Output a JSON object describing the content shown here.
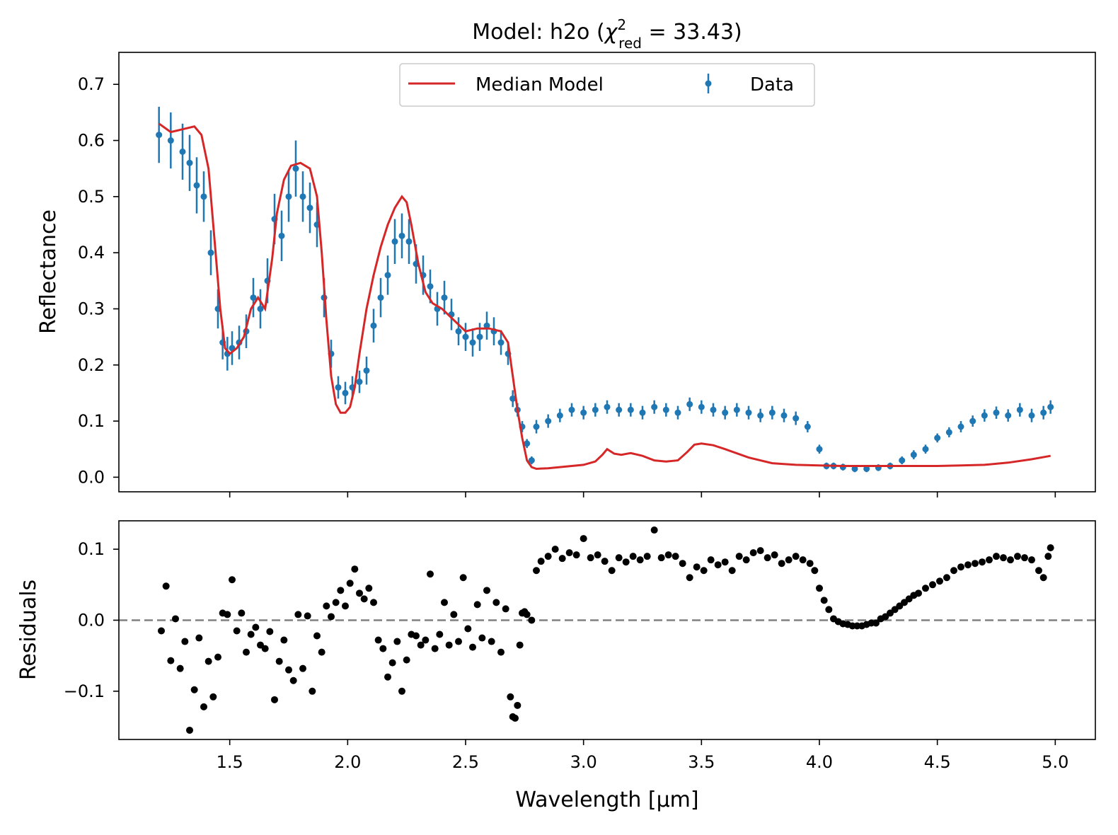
{
  "chart_data": {
    "type": "scatter",
    "title": {
      "prefix": "Model: h2o   (",
      "chi": "χ",
      "sup": "2",
      "sub": "red",
      "suffix": " = 33.43)"
    },
    "xlabel": "Wavelength [μm]",
    "xlim": [
      1.03,
      5.17
    ],
    "x_ticks": [
      1.5,
      2.0,
      2.5,
      3.0,
      3.5,
      4.0,
      4.5,
      5.0
    ],
    "x_tick_labels": [
      "1.5",
      "2.0",
      "2.5",
      "3.0",
      "3.5",
      "4.0",
      "4.5",
      "5.0"
    ],
    "legend": {
      "placement": "top-center",
      "model_label": "Median Model",
      "data_label": "Data"
    },
    "colors": {
      "model": "#d62728",
      "data": "#1f77b4",
      "residual": "#000000",
      "zero_line": "#808080"
    },
    "top_panel": {
      "ylabel": "Reflectance",
      "ylim": [
        -0.026,
        0.757
      ],
      "y_ticks": [
        0.0,
        0.1,
        0.2,
        0.3,
        0.4,
        0.5,
        0.6,
        0.7
      ],
      "y_tick_labels": [
        "0.0",
        "0.1",
        "0.2",
        "0.3",
        "0.4",
        "0.5",
        "0.6",
        "0.7"
      ],
      "model_curve": {
        "name": "Median Model",
        "x": [
          1.2,
          1.25,
          1.3,
          1.35,
          1.38,
          1.41,
          1.44,
          1.46,
          1.48,
          1.5,
          1.53,
          1.56,
          1.59,
          1.62,
          1.65,
          1.68,
          1.7,
          1.73,
          1.76,
          1.8,
          1.84,
          1.87,
          1.89,
          1.91,
          1.93,
          1.95,
          1.97,
          1.99,
          2.01,
          2.03,
          2.05,
          2.08,
          2.11,
          2.14,
          2.17,
          2.2,
          2.23,
          2.25,
          2.27,
          2.3,
          2.33,
          2.36,
          2.4,
          2.45,
          2.5,
          2.55,
          2.6,
          2.65,
          2.68,
          2.7,
          2.72,
          2.74,
          2.76,
          2.78,
          2.8,
          2.85,
          2.9,
          2.95,
          3.0,
          3.05,
          3.08,
          3.1,
          3.13,
          3.16,
          3.2,
          3.25,
          3.3,
          3.35,
          3.4,
          3.44,
          3.47,
          3.5,
          3.55,
          3.6,
          3.7,
          3.8,
          3.9,
          4.0,
          4.1,
          4.2,
          4.3,
          4.4,
          4.5,
          4.6,
          4.7,
          4.8,
          4.9,
          4.98
        ],
        "y": [
          0.63,
          0.615,
          0.62,
          0.625,
          0.61,
          0.55,
          0.4,
          0.3,
          0.23,
          0.22,
          0.23,
          0.25,
          0.3,
          0.32,
          0.3,
          0.39,
          0.47,
          0.53,
          0.555,
          0.56,
          0.55,
          0.5,
          0.4,
          0.28,
          0.18,
          0.13,
          0.115,
          0.115,
          0.125,
          0.16,
          0.22,
          0.3,
          0.36,
          0.41,
          0.45,
          0.48,
          0.5,
          0.49,
          0.45,
          0.38,
          0.33,
          0.31,
          0.3,
          0.28,
          0.26,
          0.265,
          0.265,
          0.26,
          0.24,
          0.18,
          0.12,
          0.07,
          0.03,
          0.018,
          0.015,
          0.016,
          0.018,
          0.02,
          0.022,
          0.028,
          0.04,
          0.05,
          0.042,
          0.04,
          0.043,
          0.038,
          0.03,
          0.028,
          0.03,
          0.045,
          0.058,
          0.06,
          0.057,
          0.05,
          0.035,
          0.025,
          0.022,
          0.021,
          0.02,
          0.02,
          0.02,
          0.02,
          0.02,
          0.021,
          0.022,
          0.026,
          0.032,
          0.038
        ]
      },
      "data_points": {
        "name": "Data",
        "x": [
          1.2,
          1.25,
          1.3,
          1.33,
          1.36,
          1.39,
          1.42,
          1.45,
          1.47,
          1.49,
          1.51,
          1.54,
          1.57,
          1.6,
          1.63,
          1.66,
          1.69,
          1.72,
          1.75,
          1.78,
          1.81,
          1.84,
          1.87,
          1.9,
          1.93,
          1.96,
          1.99,
          2.02,
          2.05,
          2.08,
          2.11,
          2.14,
          2.17,
          2.2,
          2.23,
          2.26,
          2.29,
          2.32,
          2.35,
          2.38,
          2.41,
          2.44,
          2.47,
          2.5,
          2.53,
          2.56,
          2.59,
          2.62,
          2.65,
          2.68,
          2.7,
          2.72,
          2.74,
          2.76,
          2.78,
          2.8,
          2.85,
          2.9,
          2.95,
          3.0,
          3.05,
          3.1,
          3.15,
          3.2,
          3.25,
          3.3,
          3.35,
          3.4,
          3.45,
          3.5,
          3.55,
          3.6,
          3.65,
          3.7,
          3.75,
          3.8,
          3.85,
          3.9,
          3.95,
          4.0,
          4.03,
          4.06,
          4.1,
          4.15,
          4.2,
          4.25,
          4.3,
          4.35,
          4.4,
          4.45,
          4.5,
          4.55,
          4.6,
          4.65,
          4.7,
          4.75,
          4.8,
          4.85,
          4.9,
          4.95,
          4.98
        ],
        "y": [
          0.61,
          0.6,
          0.58,
          0.56,
          0.52,
          0.5,
          0.4,
          0.3,
          0.24,
          0.22,
          0.23,
          0.24,
          0.26,
          0.32,
          0.3,
          0.35,
          0.46,
          0.43,
          0.5,
          0.55,
          0.5,
          0.48,
          0.45,
          0.32,
          0.22,
          0.16,
          0.15,
          0.16,
          0.17,
          0.19,
          0.27,
          0.32,
          0.36,
          0.42,
          0.43,
          0.42,
          0.38,
          0.36,
          0.34,
          0.3,
          0.32,
          0.29,
          0.26,
          0.25,
          0.24,
          0.25,
          0.27,
          0.26,
          0.24,
          0.22,
          0.14,
          0.12,
          0.09,
          0.06,
          0.03,
          0.09,
          0.1,
          0.11,
          0.12,
          0.115,
          0.12,
          0.125,
          0.12,
          0.12,
          0.115,
          0.125,
          0.12,
          0.115,
          0.13,
          0.125,
          0.12,
          0.115,
          0.12,
          0.115,
          0.11,
          0.115,
          0.11,
          0.105,
          0.09,
          0.05,
          0.02,
          0.02,
          0.018,
          0.015,
          0.015,
          0.017,
          0.02,
          0.03,
          0.04,
          0.05,
          0.07,
          0.08,
          0.09,
          0.1,
          0.11,
          0.115,
          0.11,
          0.12,
          0.11,
          0.115,
          0.125
        ],
        "error": [
          0.05,
          0.05,
          0.05,
          0.05,
          0.05,
          0.045,
          0.04,
          0.035,
          0.03,
          0.03,
          0.03,
          0.03,
          0.03,
          0.035,
          0.035,
          0.04,
          0.045,
          0.045,
          0.045,
          0.05,
          0.045,
          0.045,
          0.04,
          0.035,
          0.025,
          0.02,
          0.02,
          0.02,
          0.02,
          0.025,
          0.03,
          0.035,
          0.035,
          0.04,
          0.04,
          0.04,
          0.035,
          0.035,
          0.03,
          0.03,
          0.03,
          0.028,
          0.025,
          0.025,
          0.025,
          0.025,
          0.025,
          0.025,
          0.022,
          0.02,
          0.015,
          0.012,
          0.01,
          0.008,
          0.007,
          0.012,
          0.012,
          0.012,
          0.012,
          0.012,
          0.012,
          0.012,
          0.012,
          0.012,
          0.012,
          0.012,
          0.012,
          0.012,
          0.012,
          0.012,
          0.012,
          0.012,
          0.012,
          0.012,
          0.012,
          0.012,
          0.012,
          0.012,
          0.01,
          0.008,
          0.006,
          0.006,
          0.006,
          0.006,
          0.006,
          0.006,
          0.006,
          0.007,
          0.008,
          0.008,
          0.008,
          0.009,
          0.01,
          0.01,
          0.011,
          0.011,
          0.011,
          0.012,
          0.012,
          0.012,
          0.012
        ]
      }
    },
    "bottom_panel": {
      "ylabel": "Residuals",
      "ylim": [
        -0.168,
        0.14
      ],
      "y_ticks": [
        -0.1,
        0.0,
        0.1
      ],
      "y_tick_labels": [
        "−0.1",
        "0.0",
        "0.1"
      ],
      "zero_line": 0.0,
      "residuals": {
        "x": [
          1.21,
          1.23,
          1.25,
          1.27,
          1.29,
          1.31,
          1.33,
          1.35,
          1.37,
          1.39,
          1.41,
          1.43,
          1.45,
          1.47,
          1.49,
          1.51,
          1.53,
          1.55,
          1.57,
          1.59,
          1.61,
          1.63,
          1.65,
          1.67,
          1.69,
          1.71,
          1.73,
          1.75,
          1.77,
          1.79,
          1.81,
          1.83,
          1.85,
          1.87,
          1.89,
          1.91,
          1.93,
          1.95,
          1.97,
          1.99,
          2.01,
          2.03,
          2.05,
          2.07,
          2.09,
          2.11,
          2.13,
          2.15,
          2.17,
          2.19,
          2.21,
          2.23,
          2.25,
          2.27,
          2.29,
          2.31,
          2.33,
          2.35,
          2.37,
          2.39,
          2.41,
          2.43,
          2.45,
          2.47,
          2.49,
          2.51,
          2.53,
          2.55,
          2.57,
          2.59,
          2.61,
          2.63,
          2.65,
          2.67,
          2.69,
          2.7,
          2.71,
          2.72,
          2.73,
          2.74,
          2.75,
          2.76,
          2.78,
          2.8,
          2.82,
          2.85,
          2.88,
          2.91,
          2.94,
          2.97,
          3.0,
          3.03,
          3.06,
          3.09,
          3.12,
          3.15,
          3.18,
          3.21,
          3.24,
          3.27,
          3.3,
          3.33,
          3.36,
          3.39,
          3.42,
          3.45,
          3.48,
          3.51,
          3.54,
          3.57,
          3.6,
          3.63,
          3.66,
          3.69,
          3.72,
          3.75,
          3.78,
          3.81,
          3.84,
          3.87,
          3.9,
          3.93,
          3.96,
          3.98,
          4.0,
          4.02,
          4.04,
          4.06,
          4.08,
          4.1,
          4.12,
          4.14,
          4.16,
          4.18,
          4.2,
          4.22,
          4.24,
          4.26,
          4.28,
          4.3,
          4.32,
          4.34,
          4.36,
          4.38,
          4.4,
          4.42,
          4.45,
          4.48,
          4.51,
          4.54,
          4.57,
          4.6,
          4.63,
          4.66,
          4.69,
          4.72,
          4.75,
          4.78,
          4.81,
          4.84,
          4.87,
          4.9,
          4.93,
          4.95,
          4.97,
          4.98
        ],
        "y": [
          -0.015,
          0.048,
          -0.057,
          0.002,
          -0.068,
          -0.03,
          -0.155,
          -0.098,
          -0.025,
          -0.122,
          -0.058,
          -0.108,
          -0.052,
          0.01,
          0.008,
          0.057,
          -0.015,
          0.01,
          -0.045,
          -0.02,
          -0.01,
          -0.035,
          -0.04,
          -0.016,
          -0.112,
          -0.058,
          -0.028,
          -0.07,
          -0.085,
          0.008,
          -0.068,
          0.006,
          -0.1,
          -0.022,
          -0.045,
          0.02,
          0.005,
          0.025,
          0.042,
          0.02,
          0.052,
          0.072,
          0.038,
          0.03,
          0.045,
          0.025,
          -0.028,
          -0.04,
          -0.08,
          -0.06,
          -0.03,
          -0.1,
          -0.056,
          -0.02,
          -0.022,
          -0.035,
          -0.028,
          0.065,
          -0.04,
          -0.02,
          0.025,
          -0.035,
          0.008,
          -0.03,
          0.06,
          -0.012,
          -0.038,
          0.022,
          -0.025,
          0.042,
          -0.03,
          0.025,
          -0.045,
          0.016,
          -0.108,
          -0.136,
          -0.138,
          -0.12,
          -0.035,
          0.01,
          0.012,
          0.008,
          0.0,
          0.07,
          0.083,
          0.09,
          0.1,
          0.087,
          0.095,
          0.092,
          0.115,
          0.088,
          0.092,
          0.083,
          0.07,
          0.088,
          0.082,
          0.09,
          0.085,
          0.09,
          0.127,
          0.088,
          0.092,
          0.09,
          0.08,
          0.06,
          0.075,
          0.07,
          0.085,
          0.078,
          0.082,
          0.07,
          0.09,
          0.085,
          0.095,
          0.098,
          0.088,
          0.092,
          0.08,
          0.085,
          0.09,
          0.085,
          0.08,
          0.07,
          0.045,
          0.028,
          0.015,
          0.002,
          -0.002,
          -0.005,
          -0.006,
          -0.008,
          -0.008,
          -0.008,
          -0.006,
          -0.004,
          -0.004,
          0.002,
          0.005,
          0.01,
          0.015,
          0.02,
          0.025,
          0.03,
          0.035,
          0.038,
          0.045,
          0.05,
          0.055,
          0.06,
          0.07,
          0.075,
          0.078,
          0.08,
          0.082,
          0.085,
          0.09,
          0.088,
          0.085,
          0.09,
          0.088,
          0.085,
          0.07,
          0.06,
          0.09,
          0.102
        ]
      }
    }
  }
}
